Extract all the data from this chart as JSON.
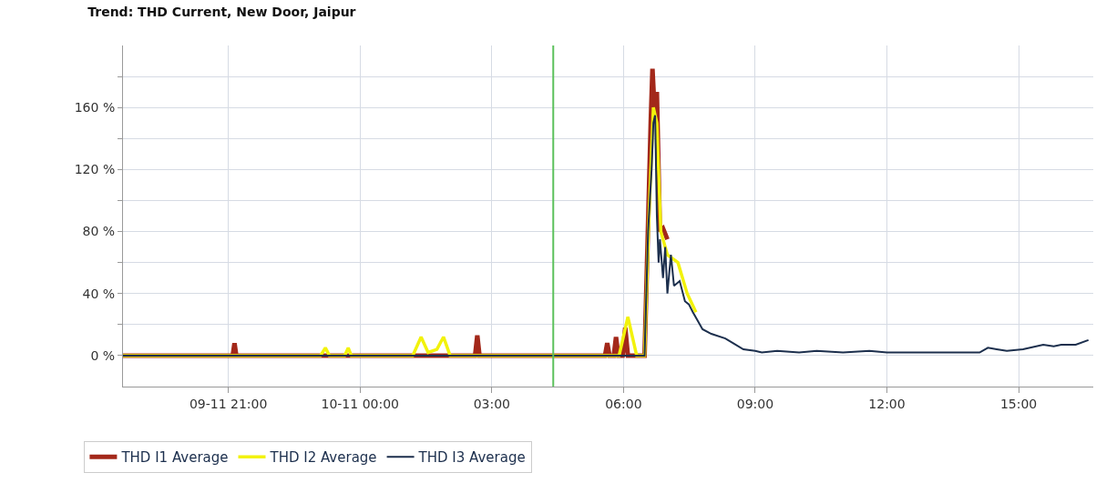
{
  "chart_data": {
    "type": "line",
    "title": "Trend: THD Current, New Door, Jaipur",
    "series": [
      {
        "name": "THD I1 Average",
        "color": "#a3281a",
        "x": [
          -5.4,
          -2.9,
          -2.86,
          -2.82,
          2.62,
          2.67,
          2.72,
          5.58,
          5.63,
          5.68,
          5.78,
          5.83,
          5.88,
          5.98,
          6.04,
          6.1,
          6.48,
          6.56,
          6.62,
          6.66,
          6.72,
          6.76,
          6.83,
          6.9,
          7.0
        ],
        "values": [
          0,
          0,
          8,
          0,
          0,
          13,
          0,
          0,
          8,
          0,
          0,
          12,
          0,
          0,
          18,
          0,
          0,
          85,
          150,
          185,
          150,
          170,
          80,
          82,
          75
        ]
      },
      {
        "name": "THD I2 Average",
        "color": "#f2f20c",
        "x": [
          -5.4,
          -0.9,
          -0.79,
          -0.7,
          -0.35,
          -0.27,
          -0.2,
          1.2,
          1.39,
          1.55,
          1.75,
          1.9,
          2.05,
          5.9,
          6.1,
          6.3,
          6.48,
          6.58,
          6.68,
          6.76,
          6.85,
          7.0,
          7.24,
          7.45,
          7.65
        ],
        "values": [
          0,
          0,
          5,
          0,
          0,
          5,
          0,
          0,
          12,
          2,
          4,
          12,
          0,
          0,
          25,
          0,
          0,
          90,
          160,
          150,
          80,
          65,
          60,
          40,
          28
        ]
      },
      {
        "name": "THD I3 Average",
        "color": "#1c2f4d",
        "x": [
          -5.4,
          6.48,
          6.56,
          6.64,
          6.68,
          6.72,
          6.76,
          6.8,
          6.83,
          6.9,
          6.95,
          7.0,
          7.08,
          7.15,
          7.28,
          7.4,
          7.49,
          7.58,
          7.66,
          7.8,
          8.0,
          8.32,
          8.5,
          8.73,
          9.0,
          9.15,
          9.5,
          10.0,
          10.4,
          11.0,
          11.6,
          12.0,
          12.6,
          13.1,
          13.6,
          14.11,
          14.3,
          14.5,
          14.73,
          15.1,
          15.56,
          15.8,
          15.97,
          16.3,
          16.59
        ],
        "values": [
          0,
          0,
          80,
          120,
          150,
          155,
          90,
          60,
          75,
          50,
          70,
          40,
          65,
          45,
          48,
          35,
          33,
          28,
          24,
          17,
          14,
          11,
          8,
          4,
          3,
          2,
          3,
          2,
          3,
          2,
          3,
          2,
          2,
          2,
          2,
          2,
          5,
          4,
          3,
          4,
          7,
          6,
          7,
          7,
          10
        ]
      }
    ],
    "xlim": [
      -5.4,
      16.7
    ],
    "xticks": [
      {
        "value": -3,
        "label": "09-11 21:00"
      },
      {
        "value": 0,
        "label": "10-11 00:00"
      },
      {
        "value": 3,
        "label": "03:00"
      },
      {
        "value": 6,
        "label": "06:00"
      },
      {
        "value": 9,
        "label": "09:00"
      },
      {
        "value": 12,
        "label": "12:00"
      },
      {
        "value": 15,
        "label": "15:00"
      }
    ],
    "ylim": [
      -20,
      200
    ],
    "yticks": [
      {
        "value": 0,
        "label": "0 %"
      },
      {
        "value": 20,
        "label": null
      },
      {
        "value": 40,
        "label": "40 %"
      },
      {
        "value": 60,
        "label": null
      },
      {
        "value": 80,
        "label": "80 %"
      },
      {
        "value": 100,
        "label": null
      },
      {
        "value": 120,
        "label": "120 %"
      },
      {
        "value": 140,
        "label": null
      },
      {
        "value": 160,
        "label": "160 %"
      },
      {
        "value": 180,
        "label": null
      }
    ],
    "ref_lines": [
      {
        "axis": "x",
        "value": 4.4,
        "color": "#5cc15c"
      }
    ],
    "grid": true,
    "legend": "bottom left",
    "marker": "none",
    "line_style": "solid"
  }
}
